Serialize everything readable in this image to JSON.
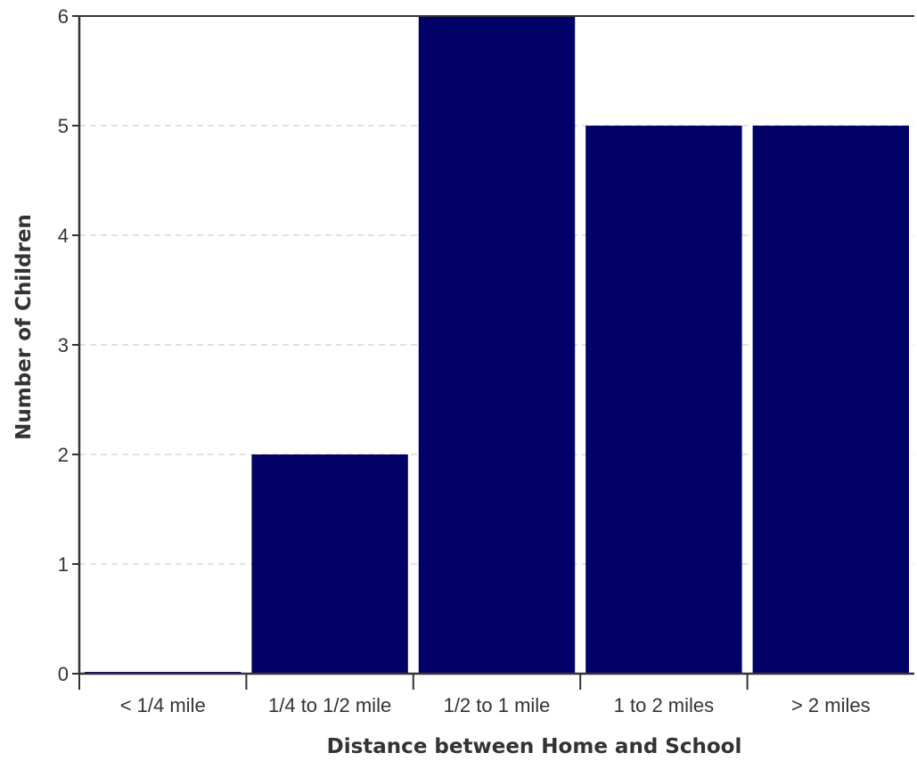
{
  "chart_data": {
    "type": "bar",
    "title": "",
    "xlabel": "Distance between Home and School",
    "ylabel": "Number of Children",
    "categories": [
      "< 1/4 mile",
      "1/4 to 1/2 mile",
      "1/2 to 1 mile",
      "1 to 2 miles",
      "> 2 miles"
    ],
    "values": [
      0,
      2,
      6,
      5,
      5
    ],
    "ylim": [
      0,
      6
    ],
    "yticks": [
      "0",
      "1",
      "2",
      "3",
      "4",
      "5",
      "6"
    ],
    "grid": true,
    "legend": "none",
    "colors": {
      "bar": "#000066",
      "axis": "#333333",
      "grid": "#d8d8d8",
      "text": "#333333"
    }
  }
}
